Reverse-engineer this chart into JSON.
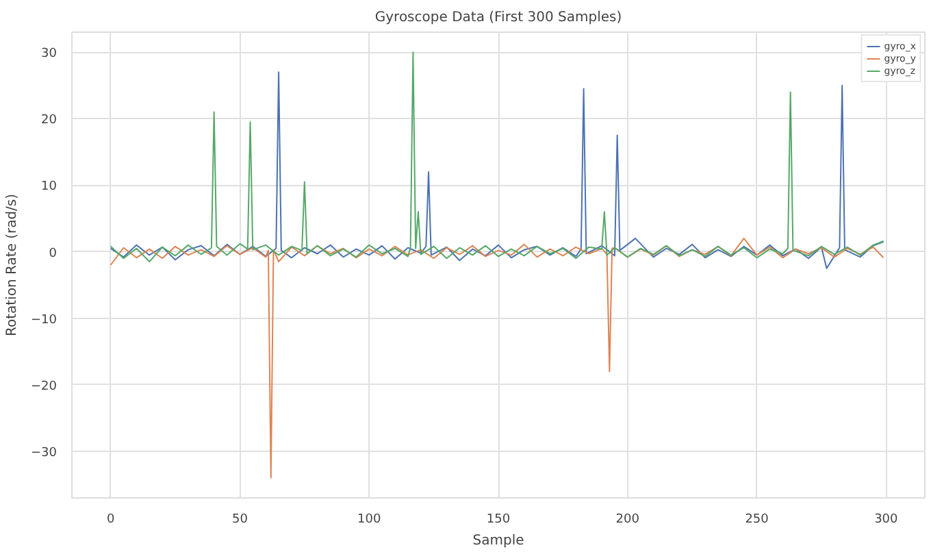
{
  "chart_data": {
    "type": "line",
    "title": "Gyroscope Data (First 300 Samples)",
    "xlabel": "Sample",
    "ylabel": "Rotation Rate (rad/s)",
    "xlim": [
      -15,
      315
    ],
    "ylim": [
      -37,
      33
    ],
    "xticks": [
      0,
      50,
      100,
      150,
      200,
      250,
      300
    ],
    "yticks": [
      -30,
      -20,
      -10,
      0,
      10,
      20,
      30
    ],
    "grid": true,
    "legend": "top right",
    "series": [
      {
        "name": "gyro_x",
        "color": "#4c72b0",
        "x": [
          0,
          5,
          10,
          15,
          20,
          25,
          30,
          35,
          40,
          45,
          50,
          55,
          60,
          64,
          65,
          66,
          70,
          75,
          80,
          85,
          90,
          95,
          100,
          105,
          110,
          115,
          120,
          122,
          123,
          124,
          130,
          135,
          140,
          145,
          150,
          155,
          160,
          165,
          170,
          175,
          180,
          182,
          183,
          184,
          190,
          195,
          196,
          197,
          203,
          210,
          215,
          220,
          225,
          230,
          235,
          240,
          245,
          250,
          255,
          260,
          265,
          270,
          275,
          277,
          282,
          283,
          284,
          290,
          295,
          299
        ],
        "values": [
          0.5,
          -0.8,
          1.0,
          -0.5,
          0.7,
          -1.2,
          0.3,
          0.9,
          -0.6,
          1.1,
          -0.4,
          0.8,
          -0.7,
          0.5,
          27,
          0.2,
          -0.9,
          0.6,
          -0.3,
          1.0,
          -0.8,
          0.4,
          -0.5,
          0.9,
          -1.1,
          0.6,
          -0.2,
          0.8,
          12,
          -0.5,
          0.7,
          -1.3,
          0.4,
          -0.6,
          1.0,
          -0.9,
          0.3,
          0.8,
          -0.5,
          0.6,
          -0.7,
          0.4,
          24.5,
          -0.3,
          0.9,
          -0.6,
          17.5,
          0.2,
          2.0,
          -0.8,
          0.5,
          -0.4,
          1.1,
          -0.9,
          0.3,
          -0.7,
          0.8,
          -0.5,
          1.0,
          -0.6,
          0.4,
          -1.0,
          0.7,
          -2.5,
          0.6,
          25,
          0.3,
          -0.8,
          0.9,
          1.5
        ]
      },
      {
        "name": "gyro_y",
        "color": "#dd8452",
        "x": [
          0,
          5,
          10,
          15,
          20,
          25,
          30,
          35,
          40,
          45,
          50,
          55,
          60,
          61,
          62,
          63,
          65,
          70,
          75,
          80,
          85,
          90,
          95,
          100,
          105,
          110,
          115,
          120,
          125,
          130,
          135,
          140,
          145,
          150,
          155,
          160,
          165,
          170,
          175,
          180,
          185,
          190,
          192,
          193,
          194,
          195,
          200,
          205,
          210,
          215,
          220,
          225,
          230,
          235,
          240,
          245,
          250,
          255,
          260,
          265,
          270,
          275,
          280,
          285,
          290,
          295,
          299
        ],
        "values": [
          -2.0,
          0.6,
          -0.9,
          0.4,
          -1.0,
          0.8,
          -0.5,
          0.3,
          -0.7,
          0.9,
          -0.4,
          0.6,
          -0.8,
          0.2,
          -34,
          0.3,
          -1.5,
          0.7,
          -0.6,
          0.9,
          -0.3,
          0.5,
          -0.9,
          0.4,
          -0.6,
          0.8,
          -0.5,
          0.3,
          -1.0,
          0.6,
          -0.4,
          0.9,
          -0.7,
          0.2,
          -0.5,
          1.1,
          -0.8,
          0.4,
          -0.6,
          0.7,
          -0.3,
          0.5,
          -0.4,
          -18,
          0.5,
          0.6,
          -0.8,
          0.4,
          -0.5,
          0.9,
          -0.7,
          0.3,
          -0.4,
          0.8,
          -0.6,
          2.0,
          -0.5,
          0.7,
          -0.9,
          0.4,
          -0.3,
          0.6,
          -0.8,
          0.5,
          -0.4,
          0.7,
          -0.9
        ]
      },
      {
        "name": "gyro_z",
        "color": "#55a868",
        "x": [
          0,
          5,
          10,
          15,
          20,
          25,
          30,
          35,
          39,
          40,
          41,
          45,
          50,
          53,
          54,
          55,
          60,
          65,
          70,
          74,
          75,
          76,
          80,
          85,
          90,
          95,
          100,
          105,
          110,
          115,
          116,
          117,
          118,
          119,
          120,
          125,
          130,
          135,
          140,
          145,
          150,
          155,
          160,
          165,
          170,
          175,
          180,
          185,
          190,
          191,
          192,
          195,
          200,
          205,
          210,
          215,
          220,
          225,
          230,
          235,
          240,
          245,
          250,
          255,
          260,
          262,
          263,
          264,
          270,
          275,
          280,
          285,
          290,
          295,
          299
        ],
        "values": [
          0.8,
          -1.0,
          0.5,
          -1.5,
          0.7,
          -0.6,
          1.0,
          -0.4,
          0.6,
          21,
          0.8,
          -0.5,
          1.2,
          0.4,
          19.5,
          0.3,
          1.0,
          -0.5,
          0.8,
          0.2,
          10.5,
          -0.3,
          0.9,
          -0.6,
          0.4,
          -0.8,
          1.0,
          -0.3,
          0.5,
          -0.7,
          0.6,
          30,
          0.5,
          6,
          -0.4,
          0.8,
          -1.0,
          0.6,
          -0.5,
          0.9,
          -0.7,
          0.4,
          -0.6,
          0.8,
          -0.3,
          0.5,
          -1.0,
          0.7,
          0.4,
          6,
          -0.5,
          0.6,
          -0.8,
          0.5,
          -0.4,
          0.9,
          -0.6,
          0.3,
          -0.7,
          0.8,
          -0.5,
          0.6,
          -0.9,
          0.4,
          -0.3,
          0.5,
          24,
          0.2,
          -0.6,
          0.8,
          -0.4,
          0.7,
          -0.5,
          1.0,
          1.6
        ]
      }
    ]
  }
}
